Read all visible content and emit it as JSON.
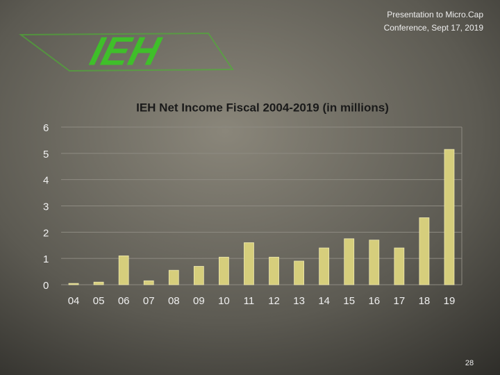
{
  "header": {
    "lines": [
      "Presentation to Micro.Cap",
      "Conference, Sept 17, 2019"
    ]
  },
  "logo": "IEH",
  "page_number": "28",
  "chart_data": {
    "type": "bar",
    "title": "IEH Net Income Fiscal 2004-2019 (in millions)",
    "categories": [
      "04",
      "05",
      "06",
      "07",
      "08",
      "09",
      "10",
      "11",
      "12",
      "13",
      "14",
      "15",
      "16",
      "17",
      "18",
      "19"
    ],
    "values": [
      0.05,
      0.1,
      1.1,
      0.15,
      0.55,
      0.7,
      1.05,
      1.6,
      1.05,
      0.9,
      1.4,
      1.75,
      1.7,
      1.4,
      2.55,
      5.15
    ],
    "color": "#d6ce7c",
    "ylim": [
      0,
      6
    ],
    "yticks": [
      0,
      1,
      2,
      3,
      4,
      5,
      6
    ],
    "grid": true
  }
}
